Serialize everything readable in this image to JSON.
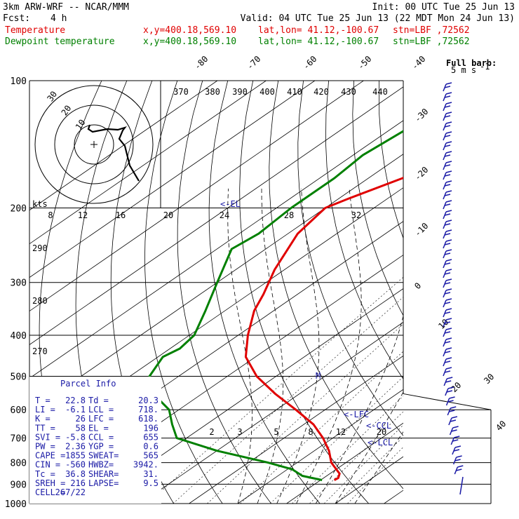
{
  "header": {
    "model": "3km ARW-WRF -- NCAR/MMM",
    "init": "Init: 00 UTC Tue 25 Jun 13",
    "fcst_label": "Fcst:",
    "fcst_value": "4 h",
    "valid": "Valid: 04 UTC Tue 25 Jun 13 (22 MDT Mon 24 Jun 13)"
  },
  "legend": [
    {
      "name": "Temperature",
      "xy": "x,y=400.18,569.10",
      "latlon": "lat,lon= 41.12,-100.67",
      "stn": "stn=LBF ,72562",
      "color": "#e00000"
    },
    {
      "name": "Dewpoint temperature",
      "xy": "x,y=400.18,569.10",
      "latlon": "lat,lon= 41.12,-100.67",
      "stn": "stn=LBF ,72562",
      "color": "#008000"
    }
  ],
  "barb_legend": {
    "title": "Full barb:",
    "value": "5 m s",
    "exp": "-1"
  },
  "parcel_info": {
    "title": "Parcel Info",
    "rows": [
      [
        "T  =",
        "22.8",
        "Td =",
        "20.3"
      ],
      [
        "LI =",
        "-6.1",
        "LCL =",
        "718."
      ],
      [
        "K  =",
        "26",
        "LFC =",
        "618."
      ],
      [
        "TT =",
        "58",
        "EL  =",
        "196"
      ],
      [
        "SVI =",
        "-5.8",
        "CCL =",
        "655"
      ],
      [
        "PW =",
        "2.36",
        "YGP =",
        "0.6"
      ],
      [
        "CAPE =",
        "1855",
        "SWEAT=",
        "565"
      ],
      [
        "CIN =",
        "-560",
        "HWBZ=",
        "3942."
      ],
      [
        "Tc =",
        "36.8",
        "SHEAR=",
        "31."
      ],
      [
        "SREH =",
        "216",
        "LAPSE=",
        "9.5"
      ],
      [
        "CELL =",
        "267/22",
        "",
        ""
      ]
    ]
  },
  "annotations": {
    "el": "<-EL",
    "lfc": "<-LFC",
    "ccl": "<-CCL",
    "lcl": "<-LCL",
    "m": "M"
  },
  "hodograph": {
    "units": "kts",
    "rings": [
      "10",
      "20",
      "30"
    ]
  },
  "chart_data": {
    "type": "line",
    "title": "",
    "xlabel": "",
    "ylabel": "",
    "pressure_levels": [
      100,
      200,
      300,
      400,
      500,
      600,
      700,
      800,
      900,
      1000
    ],
    "isotherm_labels": [
      "-80",
      "-70",
      "-60",
      "-50",
      "-40",
      "-30",
      "-20",
      "-10",
      "0",
      "10",
      "20",
      "30",
      "40"
    ],
    "theta_labels": [
      "370",
      "380",
      "390",
      "400",
      "410",
      "420",
      "430",
      "440"
    ],
    "theta_side_labels": [
      "290",
      "280",
      "270"
    ],
    "mixing_ratio_labels_top": [
      "8",
      "12",
      "16",
      "20",
      "24",
      "28",
      "32"
    ],
    "mixing_ratio_labels_bottom": [
      "2",
      "3",
      "5",
      "8",
      "12",
      "20"
    ],
    "series": [
      {
        "name": "Temperature",
        "color": "#e00000",
        "points": [
          [
            100,
            -43
          ],
          [
            130,
            -47
          ],
          [
            170,
            -53
          ],
          [
            190,
            -58
          ],
          [
            200,
            -60
          ],
          [
            230,
            -58
          ],
          [
            280,
            -52
          ],
          [
            320,
            -47
          ],
          [
            350,
            -44
          ],
          [
            400,
            -38
          ],
          [
            450,
            -32
          ],
          [
            500,
            -24
          ],
          [
            550,
            -15
          ],
          [
            600,
            -6
          ],
          [
            650,
            2
          ],
          [
            700,
            8
          ],
          [
            750,
            13
          ],
          [
            800,
            17
          ],
          [
            850,
            22
          ],
          [
            870,
            23
          ],
          [
            880,
            22.8
          ]
        ]
      },
      {
        "name": "Dewpoint temperature",
        "color": "#008000",
        "points": [
          [
            100,
            -62
          ],
          [
            120,
            -66
          ],
          [
            150,
            -68
          ],
          [
            170,
            -67
          ],
          [
            200,
            -67
          ],
          [
            230,
            -66
          ],
          [
            250,
            -67
          ],
          [
            300,
            -60
          ],
          [
            350,
            -54
          ],
          [
            400,
            -49
          ],
          [
            430,
            -48
          ],
          [
            450,
            -49
          ],
          [
            500,
            -46
          ],
          [
            550,
            -40
          ],
          [
            600,
            -32
          ],
          [
            650,
            -27
          ],
          [
            700,
            -22
          ],
          [
            750,
            -10
          ],
          [
            800,
            4
          ],
          [
            830,
            11
          ],
          [
            860,
            15
          ],
          [
            880,
            20.3
          ]
        ]
      }
    ]
  }
}
